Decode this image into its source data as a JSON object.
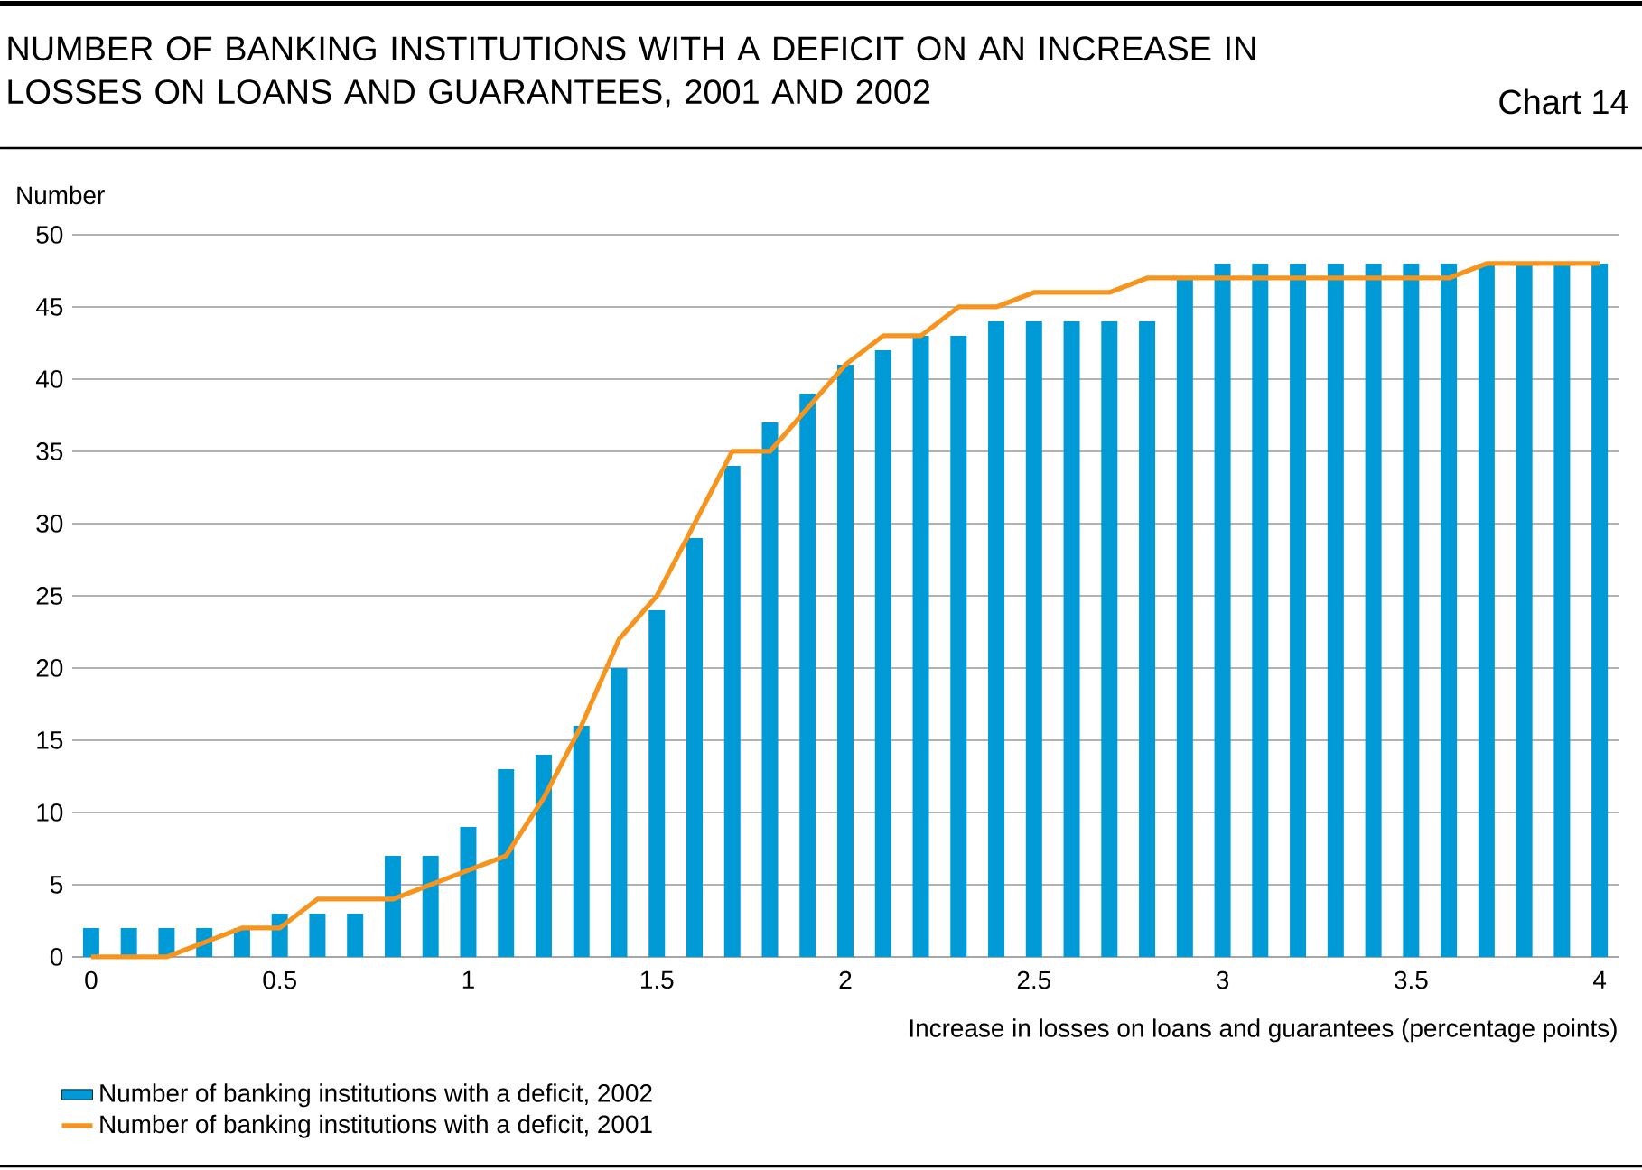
{
  "chart_data": {
    "type": "bar",
    "title": "NUMBER OF BANKING INSTITUTIONS WITH A DEFICIT ON AN INCREASE IN LOSSES ON LOANS AND GUARANTEES, 2001 AND 2002",
    "annotations": [
      "Chart 14"
    ],
    "xlabel": "Increase in losses on loans and guarantees (percentage points)",
    "ylabel": "Number",
    "x": [
      0,
      0.1,
      0.2,
      0.3,
      0.4,
      0.5,
      0.6,
      0.7,
      0.8,
      0.9,
      1,
      1.1,
      1.2,
      1.3,
      1.4,
      1.5,
      1.6,
      1.7,
      1.8,
      1.9,
      2,
      2.1,
      2.2,
      2.3,
      2.4,
      2.5,
      2.6,
      2.7,
      2.8,
      2.9,
      3,
      3.1,
      3.2,
      3.3,
      3.4,
      3.5,
      3.6,
      3.7,
      3.8,
      3.9,
      4
    ],
    "series": [
      {
        "name": "Number of banking institutions with a deficit, 2002",
        "color": "#009ad6",
        "values": [
          2,
          2,
          2,
          2,
          2,
          3,
          3,
          3,
          7,
          7,
          9,
          13,
          14,
          16,
          20,
          24,
          29,
          34,
          37,
          39,
          41,
          42,
          43,
          43,
          44,
          44,
          44,
          44,
          44,
          47,
          48,
          48,
          48,
          48,
          48,
          48,
          48,
          48,
          48,
          48,
          48
        ]
      },
      {
        "name": "Number of banking institutions with a deficit, 2001",
        "type": "line",
        "color": "#f7941d",
        "values": [
          0,
          0,
          0,
          1,
          2,
          2,
          4,
          4,
          4,
          5,
          6,
          7,
          11,
          16,
          22,
          25,
          30,
          35,
          35,
          38,
          41,
          43,
          43,
          45,
          45,
          46,
          46,
          46,
          47,
          47,
          47,
          47,
          47,
          47,
          47,
          47,
          47,
          48,
          48,
          48,
          48
        ]
      }
    ],
    "xlim": [
      -0.05,
      4.05
    ],
    "xticks": [
      0,
      0.5,
      1,
      1.5,
      2,
      2.5,
      3,
      3.5,
      4
    ],
    "ylim": [
      0,
      50
    ],
    "yticks": [
      0,
      5,
      10,
      15,
      20,
      25,
      30,
      35,
      40,
      45,
      50
    ],
    "grid": "y",
    "legend": "bottom",
    "marker": "none",
    "line_style": "solid"
  }
}
